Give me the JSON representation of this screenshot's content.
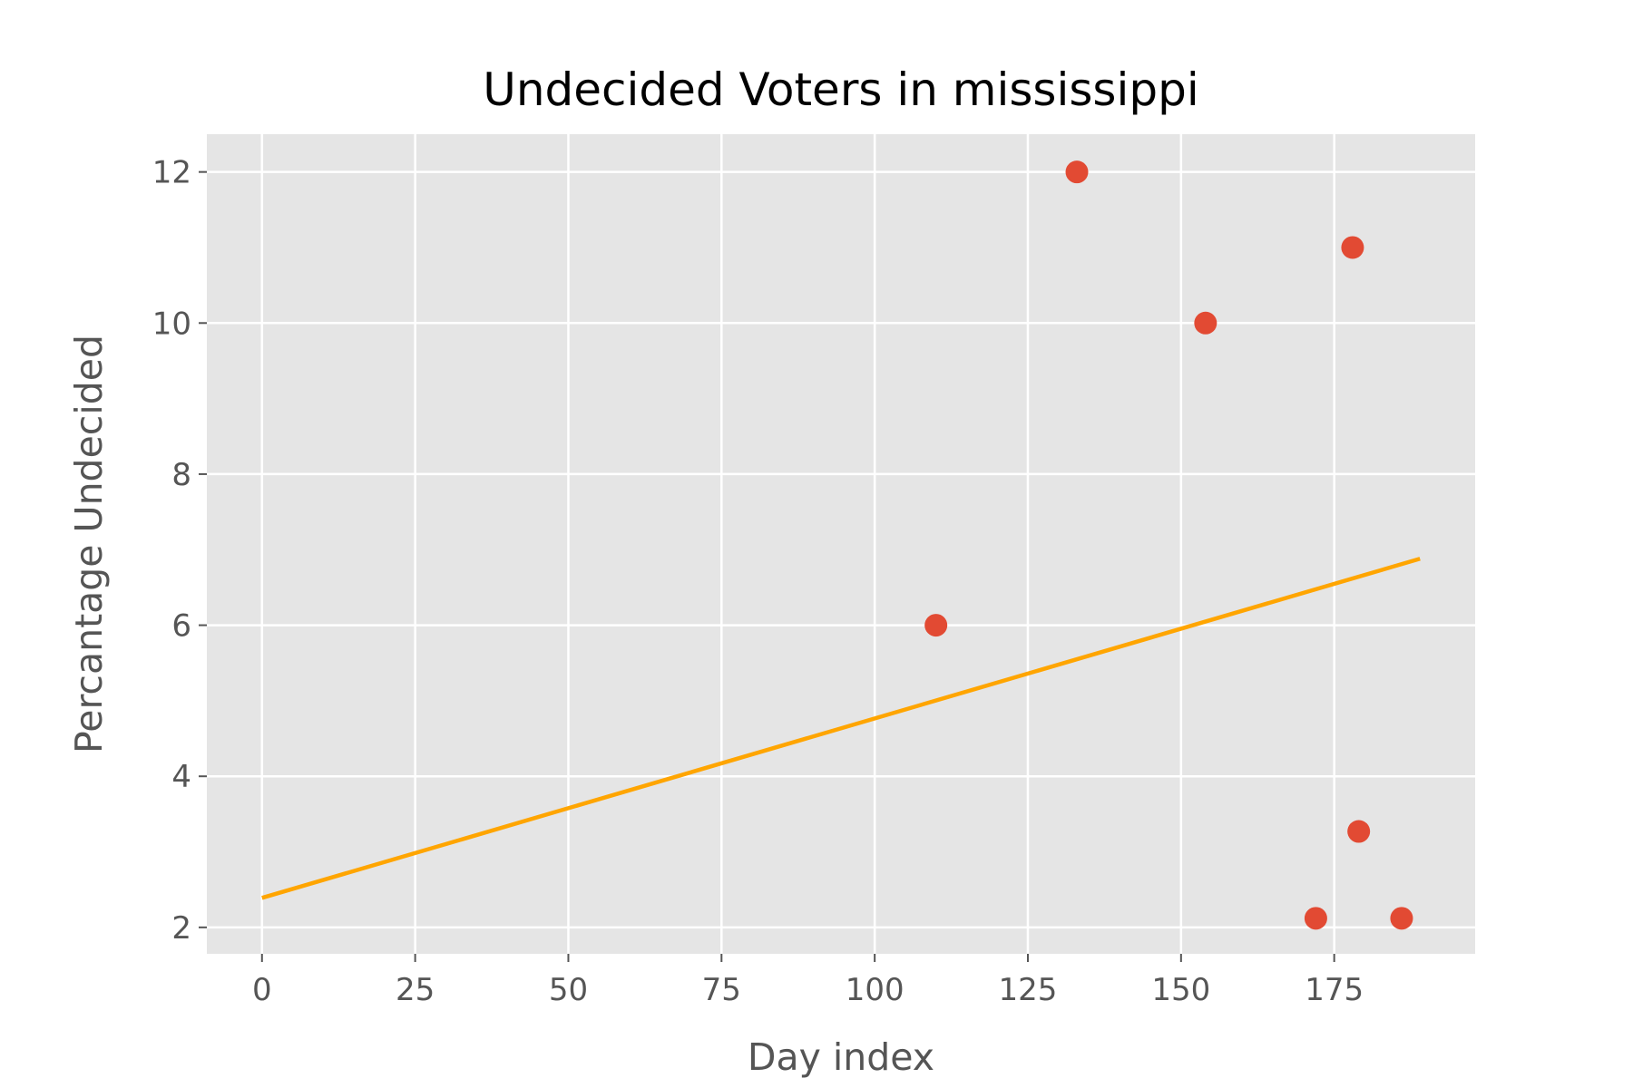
{
  "chart_data": {
    "type": "scatter",
    "title": "Undecided Voters in mississippi",
    "xlabel": "Day index",
    "ylabel": "Percantage Undecided",
    "xlim": [
      -9,
      198
    ],
    "ylim": [
      1.65,
      12.5
    ],
    "xticks": [
      0,
      25,
      50,
      75,
      100,
      125,
      150,
      175
    ],
    "yticks": [
      2,
      4,
      6,
      8,
      10,
      12
    ],
    "grid": true,
    "colors": {
      "background": "#E5E5E5",
      "grid": "#FFFFFF",
      "points": "#E24A33",
      "trend": "#FFA500"
    },
    "series": [
      {
        "type": "scatter",
        "points": [
          {
            "x": 110,
            "y": 6.0
          },
          {
            "x": 133,
            "y": 12.0
          },
          {
            "x": 154,
            "y": 10.0
          },
          {
            "x": 172,
            "y": 2.12
          },
          {
            "x": 178,
            "y": 11.0
          },
          {
            "x": 179,
            "y": 3.27
          },
          {
            "x": 186,
            "y": 2.12
          }
        ]
      },
      {
        "type": "line",
        "points": [
          {
            "x": 0,
            "y": 2.39
          },
          {
            "x": 189,
            "y": 6.88
          }
        ]
      }
    ]
  }
}
